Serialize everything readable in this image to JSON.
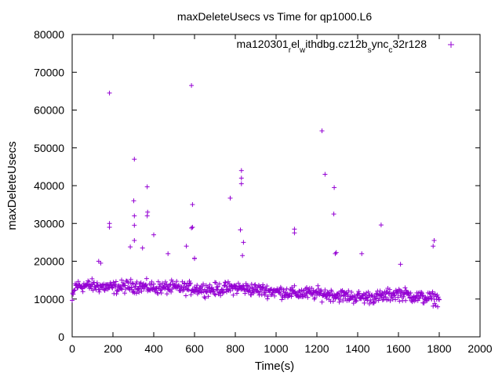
{
  "chart_data": {
    "type": "scatter",
    "title": "maxDeleteUsecs vs Time for qp1000.L6",
    "xlabel": "Time(s)",
    "ylabel": "maxDeleteUsecs",
    "xlim": [
      0,
      2000
    ],
    "ylim": [
      0,
      80000
    ],
    "x_ticks": [
      "0",
      "200",
      "400",
      "600",
      "800",
      "1000",
      "1200",
      "1400",
      "1600",
      "1800",
      "2000"
    ],
    "y_ticks": [
      "0",
      "10000",
      "20000",
      "30000",
      "40000",
      "50000",
      "60000",
      "70000",
      "80000"
    ],
    "grid": false,
    "legend_position": "top-right",
    "series": [
      {
        "name": "ma120301_rel_withdbg.cz12b_sync_c32r128",
        "name_display": {
          "parts": [
            {
              "t": "ma120301",
              "sub": false
            },
            {
              "t": "r",
              "sub": true
            },
            {
              "t": "el",
              "sub": false
            },
            {
              "t": "w",
              "sub": true
            },
            {
              "t": "ithdbg.cz12b",
              "sub": false
            },
            {
              "t": "s",
              "sub": true
            },
            {
              "t": "ync",
              "sub": false
            },
            {
              "t": "c",
              "sub": true
            },
            {
              "t": "32r128",
              "sub": false
            }
          ]
        },
        "color": "#9400d3",
        "marker": "plus",
        "outliers": [
          [
            183,
            64500
          ],
          [
            585,
            66500
          ],
          [
            1225,
            54500
          ],
          [
            305,
            47000
          ],
          [
            1240,
            43000
          ],
          [
            830,
            44000
          ],
          [
            830,
            42000
          ],
          [
            830,
            40500
          ],
          [
            1285,
            39500
          ],
          [
            368,
            39700
          ],
          [
            775,
            36700
          ],
          [
            302,
            36000
          ],
          [
            590,
            35000
          ],
          [
            370,
            33000
          ],
          [
            368,
            32000
          ],
          [
            305,
            32000
          ],
          [
            1283,
            32500
          ],
          [
            183,
            30000
          ],
          [
            183,
            29000
          ],
          [
            305,
            29500
          ],
          [
            585,
            28800
          ],
          [
            590,
            29000
          ],
          [
            825,
            28300
          ],
          [
            1090,
            28500
          ],
          [
            1090,
            27500
          ],
          [
            1515,
            29600
          ],
          [
            400,
            27000
          ],
          [
            305,
            25500
          ],
          [
            345,
            23500
          ],
          [
            840,
            25000
          ],
          [
            1775,
            25500
          ],
          [
            1770,
            24000
          ],
          [
            560,
            24000
          ],
          [
            285,
            23800
          ],
          [
            1290,
            22000
          ],
          [
            1420,
            22000
          ],
          [
            835,
            21500
          ],
          [
            1295,
            22300
          ],
          [
            600,
            20800
          ],
          [
            130,
            20000
          ],
          [
            140,
            19500
          ],
          [
            470,
            22000
          ],
          [
            600,
            20700
          ],
          [
            1610,
            19200
          ]
        ],
        "baseline": {
          "x_start": 0,
          "x_end": 1800,
          "x_step": 2.5,
          "profile": [
            [
              0,
              13500
            ],
            [
              100,
              13500
            ],
            [
              200,
              13000
            ],
            [
              300,
              13500
            ],
            [
              400,
              13000
            ],
            [
              500,
              13000
            ],
            [
              600,
              12800
            ],
            [
              700,
              12500
            ],
            [
              800,
              13000
            ],
            [
              900,
              12500
            ],
            [
              1000,
              12000
            ],
            [
              1100,
              11500
            ],
            [
              1200,
              11500
            ],
            [
              1300,
              11000
            ],
            [
              1400,
              10500
            ],
            [
              1500,
              10500
            ],
            [
              1600,
              11500
            ],
            [
              1700,
              10500
            ],
            [
              1800,
              10000
            ]
          ],
          "spread": 2500
        }
      }
    ]
  }
}
